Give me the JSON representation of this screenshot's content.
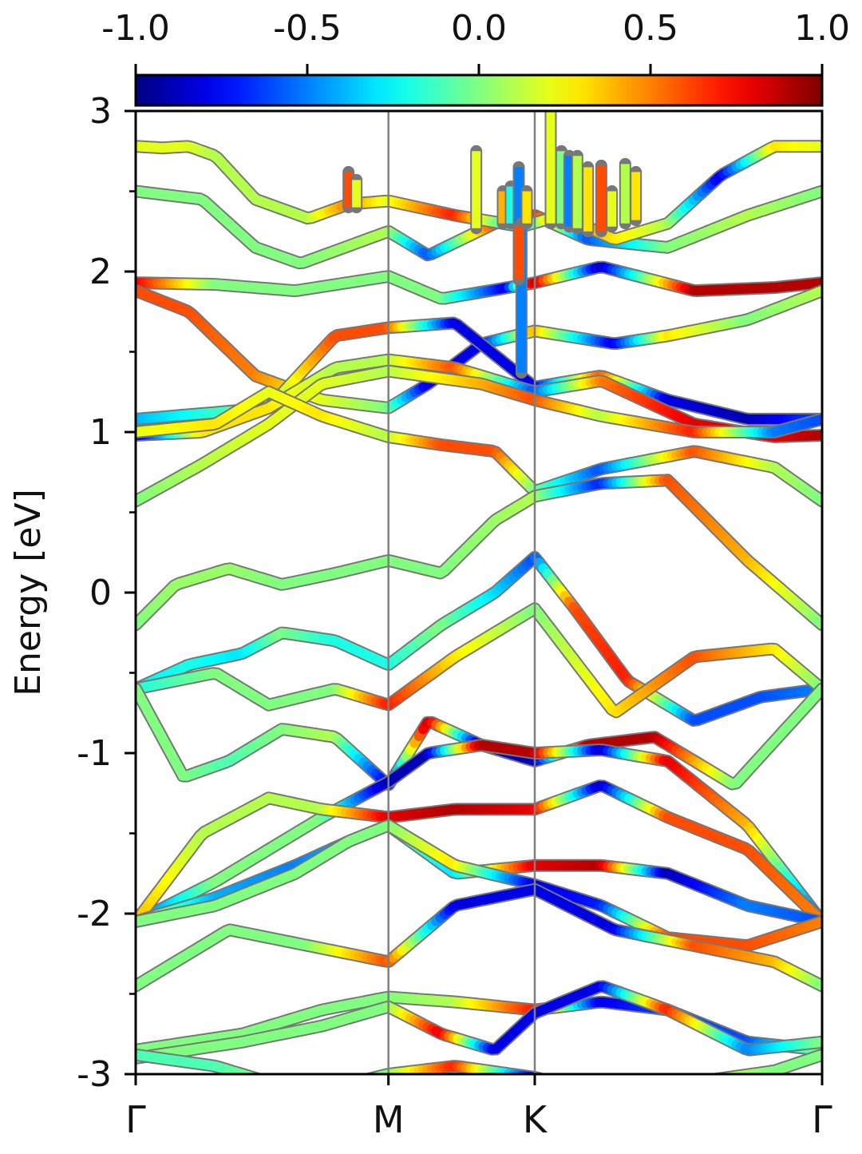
{
  "chart_data": {
    "type": "line",
    "ylabel": "Energy [eV]",
    "ylim": [
      -3,
      3
    ],
    "yticks": [
      "3",
      "2",
      "1",
      "0",
      "-1",
      "-2",
      "-3"
    ],
    "ytick_values": [
      3,
      2,
      1,
      0,
      -1,
      -2,
      -3
    ],
    "yminor_tick_values": [
      2.5,
      1.5,
      0.5,
      -0.5,
      -1.5,
      -2.5
    ],
    "xlim": [
      0,
      2.58
    ],
    "kpoints": [
      {
        "label": "Γ",
        "x": 0
      },
      {
        "label": "M",
        "x": 0.95
      },
      {
        "label": "K",
        "x": 1.5
      },
      {
        "label": "Γ",
        "x": 2.58
      }
    ],
    "colorbar": {
      "colormap": "jet",
      "range": [
        -1.0,
        1.0
      ],
      "tick_values": [
        -1.0,
        -0.5,
        0.0,
        0.5,
        1.0
      ],
      "tick_labels": [
        "-1.0",
        "-0.5",
        "0.0",
        "0.5",
        "1.0"
      ],
      "placement": "top"
    },
    "grid": false,
    "series": [
      {
        "x": [
          0,
          0.25,
          0.45,
          0.62,
          0.95,
          1.1,
          1.35,
          1.5,
          1.7,
          2.0,
          2.3,
          2.58
        ],
        "y": [
          2.5,
          2.45,
          2.15,
          2.05,
          2.25,
          2.1,
          2.3,
          2.35,
          2.2,
          2.15,
          2.35,
          2.5
        ],
        "c": [
          0,
          0,
          0,
          0,
          0.1,
          -0.6,
          0.6,
          0.7,
          -0.6,
          0,
          0.1,
          0
        ]
      },
      {
        "x": [
          0,
          0.3,
          0.6,
          0.95,
          1.15,
          1.4,
          1.5,
          1.75,
          2.1,
          2.4,
          2.58
        ],
        "y": [
          1.93,
          1.92,
          1.88,
          1.97,
          1.83,
          1.9,
          1.93,
          2.03,
          1.88,
          1.9,
          1.93
        ],
        "c": [
          0.8,
          0,
          0,
          0,
          0,
          -0.8,
          0.9,
          -0.9,
          0.9,
          0.9,
          0.9
        ]
      },
      {
        "x": [
          0,
          0.2,
          0.45,
          0.7,
          0.95,
          1.1,
          1.3,
          1.5,
          1.8,
          2.0,
          2.3,
          2.58
        ],
        "y": [
          1.88,
          1.75,
          1.35,
          1.2,
          1.15,
          1.3,
          1.55,
          1.63,
          1.55,
          1.6,
          1.7,
          1.88
        ],
        "c": [
          0.6,
          0.6,
          0.5,
          0.2,
          0,
          -0.8,
          -0.8,
          0.4,
          -0.8,
          0.3,
          0,
          0.1
        ]
      },
      {
        "x": [
          0,
          0.5,
          0.75,
          0.95,
          1.2,
          1.5,
          1.75,
          2.0,
          2.3,
          2.58
        ],
        "y": [
          1.08,
          1.15,
          1.6,
          1.65,
          1.68,
          1.28,
          1.35,
          1.2,
          1.08,
          1.08
        ],
        "c": [
          -0.4,
          0,
          0.6,
          0.6,
          -0.8,
          -0.8,
          0.6,
          -0.8,
          -0.9,
          -0.6
        ]
      },
      {
        "x": [
          0,
          0.25,
          0.5,
          0.75,
          0.95,
          1.2,
          1.5,
          1.75,
          2.1,
          2.4,
          2.58
        ],
        "y": [
          0.98,
          1.0,
          1.15,
          1.4,
          1.45,
          1.4,
          1.25,
          1.32,
          1.05,
          0.97,
          0.98
        ],
        "c": [
          -0.9,
          0.3,
          0.3,
          0.1,
          0.1,
          0.6,
          -0.6,
          0.5,
          0.8,
          0.8,
          0.9
        ]
      },
      {
        "x": [
          0,
          0.25,
          0.5,
          0.7,
          0.95,
          1.3,
          1.5,
          1.75,
          2.1,
          2.4,
          2.58
        ],
        "y": [
          0.57,
          0.8,
          1.05,
          1.3,
          1.38,
          1.3,
          1.2,
          1.1,
          1.0,
          1.0,
          1.08
        ],
        "c": [
          0,
          0.1,
          0.2,
          0.2,
          0.1,
          0.4,
          0.6,
          0.1,
          0.7,
          -0.5,
          -0.6
        ]
      },
      {
        "x": [
          0,
          0.3,
          0.5,
          0.7,
          0.95,
          1.15,
          1.35,
          1.5,
          1.75,
          2.1,
          2.4,
          2.58
        ],
        "y": [
          1.0,
          1.05,
          1.25,
          1.1,
          0.97,
          0.92,
          0.88,
          0.63,
          0.77,
          0.88,
          0.78,
          0.57
        ],
        "c": [
          0.2,
          0.3,
          0.2,
          0.3,
          0.1,
          0.6,
          0.6,
          0.0,
          -0.6,
          0.6,
          0.1,
          0
        ]
      },
      {
        "x": [
          0,
          0.15,
          0.35,
          0.55,
          0.75,
          0.95,
          1.15,
          1.35,
          1.5,
          1.75,
          2.0,
          2.3,
          2.58
        ],
        "y": [
          -0.2,
          0.05,
          0.15,
          0.05,
          0.12,
          0.2,
          0.12,
          0.45,
          0.6,
          0.68,
          0.7,
          0.2,
          -0.2
        ],
        "c": [
          0,
          0.05,
          0.05,
          0,
          0,
          0,
          0,
          0.05,
          0.1,
          -0.7,
          0.6,
          0.4,
          0
        ]
      },
      {
        "x": [
          0,
          0.2,
          0.4,
          0.55,
          0.75,
          0.95,
          1.15,
          1.35,
          1.5,
          1.65,
          1.85,
          2.1,
          2.35,
          2.58
        ],
        "y": [
          -0.6,
          -0.45,
          -0.38,
          -0.25,
          -0.3,
          -0.45,
          -0.2,
          0.0,
          0.22,
          -0.1,
          -0.55,
          -0.8,
          -0.65,
          -0.6
        ],
        "c": [
          -0.3,
          -0.2,
          -0.3,
          0,
          -0.2,
          -0.2,
          0,
          -0.3,
          -0.6,
          0.6,
          0.7,
          -0.6,
          -0.6,
          -0.5
        ]
      },
      {
        "x": [
          0,
          0.3,
          0.5,
          0.75,
          0.95,
          1.2,
          1.5,
          1.8,
          2.1,
          2.4,
          2.58
        ],
        "y": [
          -0.6,
          -0.5,
          -0.7,
          -0.6,
          -0.7,
          -0.4,
          -0.1,
          -0.75,
          -0.4,
          -0.35,
          -0.6
        ],
        "c": [
          -0.2,
          0,
          0,
          0,
          0.7,
          0.3,
          0,
          0.3,
          0.6,
          0.3,
          0
        ]
      },
      {
        "x": [
          0,
          0.18,
          0.35,
          0.55,
          0.75,
          0.95,
          1.1,
          1.3,
          1.5,
          1.7,
          1.95,
          2.25,
          2.58
        ],
        "y": [
          -0.6,
          -1.15,
          -1.05,
          -0.85,
          -0.9,
          -1.2,
          -0.8,
          -0.95,
          -1.05,
          -0.95,
          -0.9,
          -1.2,
          -0.6
        ],
        "c": [
          0,
          0,
          -0.1,
          0,
          0.1,
          -0.8,
          0.9,
          -0.9,
          -0.9,
          0.9,
          0.9,
          0,
          0
        ]
      },
      {
        "x": [
          0,
          0.3,
          0.5,
          0.7,
          0.95,
          1.1,
          1.3,
          1.5,
          1.75,
          2.0,
          2.3,
          2.58
        ],
        "y": [
          -2.05,
          -1.8,
          -1.6,
          -1.4,
          -1.18,
          -1.0,
          -0.95,
          -1.0,
          -0.98,
          -1.05,
          -1.45,
          -2.05
        ],
        "c": [
          -0.6,
          0,
          0,
          0,
          -0.9,
          -0.9,
          0.9,
          0.9,
          -0.9,
          0.8,
          0.4,
          -0.6
        ]
      },
      {
        "x": [
          0,
          0.25,
          0.5,
          0.7,
          0.95,
          1.2,
          1.5,
          1.75,
          2.0,
          2.3,
          2.58
        ],
        "y": [
          -2.05,
          -1.5,
          -1.28,
          -1.35,
          -1.4,
          -1.35,
          -1.35,
          -1.2,
          -1.4,
          -1.6,
          -2.05
        ],
        "c": [
          0.4,
          0.1,
          0.1,
          0.1,
          0.8,
          0.9,
          0.8,
          -0.9,
          0.6,
          0.6,
          0.5
        ]
      },
      {
        "x": [
          0,
          0.3,
          0.6,
          0.8,
          0.95,
          1.2,
          1.5,
          1.75,
          2.0,
          2.3,
          2.58
        ],
        "y": [
          -2.05,
          -1.9,
          -1.7,
          -1.55,
          -1.45,
          -1.75,
          -1.7,
          -1.7,
          -1.75,
          -1.95,
          -2.05
        ],
        "c": [
          0.2,
          -0.4,
          -0.5,
          -0.4,
          0,
          -0.3,
          0.8,
          0.9,
          -0.9,
          -0.5,
          -0.6
        ]
      },
      {
        "x": [
          0,
          0.3,
          0.6,
          0.8,
          0.95,
          1.2,
          1.5,
          1.75,
          2.0,
          2.3,
          2.58
        ],
        "y": [
          -2.05,
          -1.95,
          -1.75,
          -1.55,
          -1.45,
          -1.7,
          -1.82,
          -1.95,
          -2.15,
          -2.2,
          -2.05
        ],
        "c": [
          0,
          0,
          0,
          0,
          0,
          0.3,
          -0.8,
          -0.7,
          0.6,
          0.6,
          0.5
        ]
      },
      {
        "x": [
          0,
          0.35,
          0.65,
          0.95,
          1.2,
          1.5,
          1.8,
          2.1,
          2.4,
          2.58
        ],
        "y": [
          -2.45,
          -2.1,
          -2.2,
          -2.3,
          -1.95,
          -1.85,
          -2.1,
          -2.2,
          -2.3,
          -2.45
        ],
        "c": [
          0,
          0,
          0,
          0.6,
          -0.8,
          -0.8,
          -0.8,
          0.6,
          0.4,
          0
        ]
      },
      {
        "x": [
          0,
          0.4,
          0.7,
          0.95,
          1.2,
          1.5,
          1.75,
          2.0,
          2.3,
          2.58
        ],
        "y": [
          -2.85,
          -2.75,
          -2.6,
          -2.52,
          -2.55,
          -2.6,
          -2.55,
          -2.6,
          -2.8,
          -2.85
        ],
        "c": [
          0,
          0,
          0,
          0,
          0.1,
          0.7,
          -0.8,
          -0.6,
          -0.6,
          0
        ]
      },
      {
        "x": [
          0,
          0.4,
          0.7,
          0.95,
          1.15,
          1.35,
          1.5,
          1.75,
          2.0,
          2.3,
          2.58
        ],
        "y": [
          -2.9,
          -2.8,
          -2.7,
          -2.58,
          -2.75,
          -2.85,
          -2.62,
          -2.45,
          -2.6,
          -2.85,
          -2.8
        ],
        "c": [
          0,
          0,
          0,
          0,
          0.8,
          -0.8,
          -0.8,
          -0.8,
          0.7,
          -0.5,
          0
        ]
      },
      {
        "x": [
          0,
          0.3,
          0.5,
          0.7,
          0.95,
          1.2,
          1.5,
          1.8,
          2.1,
          2.4,
          2.58
        ],
        "y": [
          -2.88,
          -2.95,
          -3.05,
          -3.1,
          -3.0,
          -2.95,
          -3.02,
          -3.15,
          -3.05,
          -2.98,
          -2.88
        ],
        "c": [
          -0.1,
          -0.1,
          0,
          0,
          0,
          0.7,
          -0.8,
          -0.8,
          0.2,
          0,
          0
        ]
      },
      {
        "x": [
          0,
          0.1,
          0.2,
          0.3,
          0.45,
          0.65,
          0.8,
          0.95,
          1.2,
          1.45,
          1.6,
          1.8,
          2.0,
          2.2,
          2.4,
          2.58
        ],
        "y": [
          2.78,
          2.77,
          2.78,
          2.72,
          2.45,
          2.33,
          2.42,
          2.44,
          2.35,
          2.28,
          2.35,
          2.2,
          2.3,
          2.6,
          2.78,
          2.78
        ],
        "c": [
          0.2,
          0.2,
          0.2,
          0.1,
          0.1,
          0.1,
          0.5,
          0.2,
          0.7,
          -0.4,
          0.6,
          0.3,
          0.1,
          -0.8,
          0.3,
          0.2
        ]
      }
    ],
    "spikes": [
      {
        "x": 0.8,
        "y0": 2.4,
        "y1": 2.62,
        "c": 0.6
      },
      {
        "x": 0.83,
        "y0": 2.4,
        "y1": 2.57,
        "c": 0.2
      },
      {
        "x": 1.28,
        "y0": 2.27,
        "y1": 2.75,
        "c": 0.2
      },
      {
        "x": 1.38,
        "y0": 2.3,
        "y1": 2.5,
        "c": 0.4
      },
      {
        "x": 1.41,
        "y0": 2.3,
        "y1": 2.53,
        "c": -0.2
      },
      {
        "x": 1.44,
        "y0": 2.3,
        "y1": 2.65,
        "c": -0.5
      },
      {
        "x": 1.45,
        "y0": 2.3,
        "y1": 1.37,
        "c": -0.5
      },
      {
        "x": 1.44,
        "y0": 2.28,
        "y1": 1.95,
        "c": 0.6
      },
      {
        "x": 1.47,
        "y0": 2.3,
        "y1": 2.5,
        "c": 0.3
      },
      {
        "x": 1.56,
        "y0": 2.3,
        "y1": 3.0,
        "c": 0.2
      },
      {
        "x": 1.6,
        "y0": 2.3,
        "y1": 2.75,
        "c": 0.0
      },
      {
        "x": 1.63,
        "y0": 2.28,
        "y1": 2.72,
        "c": -0.5
      },
      {
        "x": 1.66,
        "y0": 2.27,
        "y1": 2.72,
        "c": 0.1
      },
      {
        "x": 1.7,
        "y0": 2.25,
        "y1": 2.65,
        "c": 0.3
      },
      {
        "x": 1.75,
        "y0": 2.25,
        "y1": 2.66,
        "c": 0.6
      },
      {
        "x": 1.79,
        "y0": 2.28,
        "y1": 2.5,
        "c": 0.2
      },
      {
        "x": 1.84,
        "y0": 2.3,
        "y1": 2.67,
        "c": 0.1
      },
      {
        "x": 1.88,
        "y0": 2.32,
        "y1": 2.62,
        "c": 0.3
      }
    ]
  }
}
